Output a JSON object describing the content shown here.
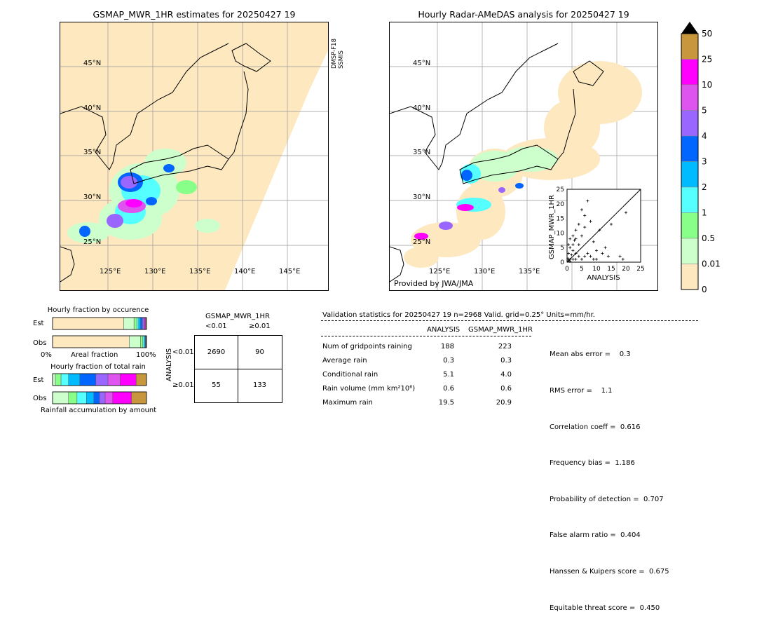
{
  "left_map": {
    "title": "GSMAP_MWR_1HR estimates for 20250427 19",
    "side_label": "DMSP-F18 SSMIS",
    "lat_labels": [
      "45°N",
      "40°N",
      "35°N",
      "30°N",
      "25°N"
    ],
    "lon_labels": [
      "125°E",
      "130°E",
      "135°E",
      "140°E",
      "145°E"
    ]
  },
  "right_map": {
    "title": "Hourly Radar-AMeDAS analysis for 20250427 19",
    "credit": "Provided by JWA/JMA",
    "lat_labels": [
      "45°N",
      "40°N",
      "35°N",
      "30°N",
      "25°N"
    ],
    "lon_labels": [
      "125°E",
      "130°E",
      "135°E"
    ]
  },
  "colorbar": {
    "levels": [
      "50",
      "25",
      "10",
      "5",
      "4",
      "3",
      "2",
      "1",
      "0.5",
      "0.01",
      "0"
    ],
    "colors": [
      "#c8963c",
      "#ff00ff",
      "#dd55ee",
      "#9966ff",
      "#0066ff",
      "#00bbff",
      "#55ffff",
      "#88ff88",
      "#ccffcc",
      "#fde8c0"
    ]
  },
  "chart_data": [
    {
      "type": "scatter",
      "title": "",
      "xlabel": "ANALYSIS",
      "ylabel": "GSMAP_MWR_1HR",
      "xlim": [
        0,
        25
      ],
      "ylim": [
        0,
        25
      ],
      "xticks": [
        "0",
        "5",
        "10",
        "15",
        "20",
        "25"
      ],
      "yticks": [
        "0",
        "5",
        "10",
        "15",
        "20",
        "25"
      ],
      "points": [
        [
          0.5,
          0.5
        ],
        [
          1,
          1
        ],
        [
          1,
          0.3
        ],
        [
          0.3,
          1.2
        ],
        [
          2,
          1
        ],
        [
          1.5,
          2.5
        ],
        [
          3,
          1
        ],
        [
          0.5,
          3
        ],
        [
          2,
          4
        ],
        [
          4,
          2
        ],
        [
          5,
          1
        ],
        [
          1,
          5
        ],
        [
          3,
          3
        ],
        [
          6,
          2
        ],
        [
          2,
          6
        ],
        [
          7,
          3
        ],
        [
          4,
          6
        ],
        [
          8,
          2
        ],
        [
          3,
          8
        ],
        [
          9,
          1
        ],
        [
          10,
          4
        ],
        [
          5,
          9
        ],
        [
          12,
          3
        ],
        [
          6,
          12
        ],
        [
          14,
          2
        ],
        [
          18,
          2
        ],
        [
          19,
          1
        ],
        [
          20,
          17
        ],
        [
          15,
          13
        ],
        [
          7,
          21
        ],
        [
          5,
          18
        ],
        [
          8,
          14
        ],
        [
          4,
          13
        ],
        [
          3,
          11
        ],
        [
          2,
          9
        ],
        [
          11,
          11
        ],
        [
          9,
          7
        ],
        [
          6,
          16
        ],
        [
          10,
          1
        ],
        [
          13,
          5
        ],
        [
          1,
          8
        ],
        [
          0.5,
          6
        ],
        [
          2.5,
          7.5
        ]
      ]
    },
    {
      "type": "bar",
      "title": "Hourly fraction by occurence",
      "categories": [
        "Est",
        "Obs"
      ],
      "xlabel": "Areal fraction",
      "x_ticks": [
        "0%",
        "100%"
      ],
      "series": [
        {
          "values": [
            0.757,
            0.816
          ]
        },
        {
          "values": [
            0.11,
            0.12
          ]
        },
        {
          "values": [
            0.03,
            0.025
          ]
        },
        {
          "values": [
            0.02,
            0.015
          ]
        },
        {
          "values": [
            0.02,
            0.01
          ]
        },
        {
          "values": [
            0.02,
            0.005
          ]
        },
        {
          "values": [
            0.015,
            0.004
          ]
        },
        {
          "values": [
            0.01,
            0.003
          ]
        },
        {
          "values": [
            0.01,
            0.001
          ]
        },
        {
          "values": [
            0.008,
            0.001
          ]
        }
      ]
    },
    {
      "type": "bar",
      "title": "Hourly fraction of total rain",
      "categories": [
        "Est",
        "Obs"
      ],
      "xlabel": "Rainfall accumulation by amount",
      "series": [
        {
          "values": [
            0.0,
            0.0
          ]
        },
        {
          "values": [
            0.03,
            0.17
          ]
        },
        {
          "values": [
            0.06,
            0.09
          ]
        },
        {
          "values": [
            0.08,
            0.1
          ]
        },
        {
          "values": [
            0.12,
            0.08
          ]
        },
        {
          "values": [
            0.17,
            0.06
          ]
        },
        {
          "values": [
            0.13,
            0.06
          ]
        },
        {
          "values": [
            0.13,
            0.08
          ]
        },
        {
          "values": [
            0.17,
            0.2
          ]
        },
        {
          "values": [
            0.11,
            0.16
          ]
        }
      ]
    }
  ],
  "contingency": {
    "title": "GSMAP_MWR_1HR",
    "col_headers": [
      "<0.01",
      "≥0.01"
    ],
    "row_headers": [
      "<0.01",
      "≥0.01"
    ],
    "side_label": "ANALYSIS",
    "cells": [
      [
        "2690",
        "90"
      ],
      [
        "55",
        "133"
      ]
    ]
  },
  "validation": {
    "header": "Validation statistics for 20250427 19  n=2968 Valid. grid=0.25° Units=mm/hr.",
    "col_analysis": "ANALYSIS",
    "col_gsmap": "GSMAP_MWR_1HR",
    "rows": [
      {
        "label": "Num of gridpoints raining",
        "a": "188",
        "g": "223"
      },
      {
        "label": "Average rain",
        "a": "0.3",
        "g": "0.3"
      },
      {
        "label": "Conditional rain",
        "a": "5.1",
        "g": "4.0"
      },
      {
        "label": "Rain volume (mm km²10⁶)",
        "a": "0.6",
        "g": "0.6"
      },
      {
        "label": "Maximum rain",
        "a": "19.5",
        "g": "20.9"
      }
    ],
    "scores": [
      "Mean abs error =    0.3",
      "RMS error =    1.1",
      "Correlation coeff =  0.616",
      "Frequency bias =  1.186",
      "Probability of detection =  0.707",
      "False alarm ratio =  0.404",
      "Hanssen & Kuipers score =  0.675",
      "Equitable threat score =  0.450"
    ]
  }
}
